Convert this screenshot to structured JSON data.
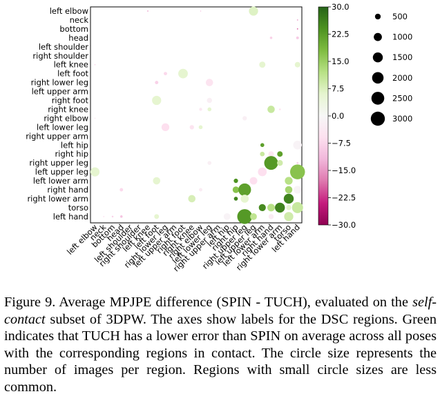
{
  "chart_data": {
    "type": "bubble-matrix",
    "y_categories": [
      "left elbow",
      "neck",
      "bottom",
      "head",
      "left shoulder",
      "right shoulder",
      "left knee",
      "left foot",
      "right lower leg",
      "left upper arm",
      "right foot",
      "right knee",
      "right elbow",
      "left lower leg",
      "right upper arm",
      "left hip",
      "right hip",
      "right upper leg",
      "left upper leg",
      "left lower arm",
      "right hand",
      "right lower arm",
      "torso",
      "left hand"
    ],
    "x_categories": [
      "left elbow",
      "neck",
      "bottom",
      "head",
      "left shoulder",
      "right shoulder",
      "left knee",
      "left foot",
      "right lower leg",
      "left upper arm",
      "right foot",
      "right knee",
      "right elbow",
      "left lower leg",
      "right upper arm",
      "left hip",
      "right hip",
      "right upper leg",
      "left upper leg",
      "left lower arm",
      "right hand",
      "right lower arm",
      "torso",
      "left hand"
    ],
    "points": [
      {
        "x": 6,
        "y": 0,
        "size": 20,
        "value": -14
      },
      {
        "x": 12,
        "y": 0,
        "size": 15,
        "value": -10
      },
      {
        "x": 18,
        "y": 0,
        "size": 1100,
        "value": 7
      },
      {
        "x": 23,
        "y": 1,
        "size": 20,
        "value": -14
      },
      {
        "x": 23,
        "y": 2,
        "size": 20,
        "value": -20
      },
      {
        "x": 20,
        "y": 3,
        "size": 80,
        "value": -8
      },
      {
        "x": 23,
        "y": 3,
        "size": 100,
        "value": -9
      },
      {
        "x": 0,
        "y": 6,
        "size": 10,
        "value": -8
      },
      {
        "x": 19,
        "y": 6,
        "size": 500,
        "value": 6
      },
      {
        "x": 23,
        "y": 6,
        "size": 400,
        "value": 6
      },
      {
        "x": 8,
        "y": 7,
        "size": 150,
        "value": -7
      },
      {
        "x": 10,
        "y": 7,
        "size": 1200,
        "value": 6
      },
      {
        "x": 7,
        "y": 8,
        "size": 150,
        "value": -8
      },
      {
        "x": 13,
        "y": 8,
        "size": 700,
        "value": -5
      },
      {
        "x": 7,
        "y": 10,
        "size": 1100,
        "value": 6
      },
      {
        "x": 13,
        "y": 10,
        "size": 350,
        "value": -2
      },
      {
        "x": 12,
        "y": 11,
        "size": 120,
        "value": -4
      },
      {
        "x": 13,
        "y": 11,
        "size": 200,
        "value": 6
      },
      {
        "x": 20,
        "y": 11,
        "size": 700,
        "value": 10
      },
      {
        "x": 21,
        "y": 11,
        "size": 40,
        "value": -6
      },
      {
        "x": 0,
        "y": 12,
        "size": 20,
        "value": -4
      },
      {
        "x": 17,
        "y": 12,
        "size": 250,
        "value": -2
      },
      {
        "x": 8,
        "y": 13,
        "size": 800,
        "value": -6
      },
      {
        "x": 11,
        "y": 13,
        "size": 250,
        "value": -5
      },
      {
        "x": 12,
        "y": 13,
        "size": 200,
        "value": 6
      },
      {
        "x": 19,
        "y": 15,
        "size": 200,
        "value": 22
      },
      {
        "x": 23,
        "y": 15,
        "size": 1000,
        "value": -1
      },
      {
        "x": 19,
        "y": 16,
        "size": 280,
        "value": 10
      },
      {
        "x": 20,
        "y": 16,
        "size": 400,
        "value": -4
      },
      {
        "x": 21,
        "y": 16,
        "size": 400,
        "value": 22
      },
      {
        "x": 13,
        "y": 17,
        "size": 200,
        "value": -2
      },
      {
        "x": 20,
        "y": 17,
        "size": 2500,
        "value": 23
      },
      {
        "x": 21,
        "y": 17,
        "size": 450,
        "value": 9
      },
      {
        "x": 23,
        "y": 17,
        "size": 50,
        "value": -8
      },
      {
        "x": 0,
        "y": 18,
        "size": 1100,
        "value": 6
      },
      {
        "x": 19,
        "y": 18,
        "size": 1000,
        "value": -6
      },
      {
        "x": 23,
        "y": 18,
        "size": 2900,
        "value": 17
      },
      {
        "x": 7,
        "y": 19,
        "size": 700,
        "value": 6
      },
      {
        "x": 16,
        "y": 19,
        "size": 250,
        "value": 24
      },
      {
        "x": 18,
        "y": 19,
        "size": 750,
        "value": -6
      },
      {
        "x": 22,
        "y": 19,
        "size": 800,
        "value": 12
      },
      {
        "x": 3,
        "y": 20,
        "size": 150,
        "value": -7
      },
      {
        "x": 12,
        "y": 20,
        "size": 150,
        "value": -3
      },
      {
        "x": 16,
        "y": 20,
        "size": 550,
        "value": 17
      },
      {
        "x": 17,
        "y": 20,
        "size": 2100,
        "value": 22
      },
      {
        "x": 22,
        "y": 20,
        "size": 700,
        "value": 14
      },
      {
        "x": 23,
        "y": 20,
        "size": 800,
        "value": -1
      },
      {
        "x": 11,
        "y": 21,
        "size": 700,
        "value": 8
      },
      {
        "x": 16,
        "y": 21,
        "size": 200,
        "value": 26
      },
      {
        "x": 17,
        "y": 21,
        "size": 850,
        "value": 6
      },
      {
        "x": 22,
        "y": 21,
        "size": 1300,
        "value": 26
      },
      {
        "x": 19,
        "y": 22,
        "size": 650,
        "value": 25
      },
      {
        "x": 20,
        "y": 22,
        "size": 750,
        "value": 12
      },
      {
        "x": 21,
        "y": 22,
        "size": 1300,
        "value": 26
      },
      {
        "x": 22,
        "y": 22,
        "size": 350,
        "value": 6
      },
      {
        "x": 23,
        "y": 22,
        "size": 1600,
        "value": 10
      },
      {
        "x": 1,
        "y": 23,
        "size": 20,
        "value": -6
      },
      {
        "x": 2,
        "y": 23,
        "size": 40,
        "value": -8
      },
      {
        "x": 3,
        "y": 23,
        "size": 80,
        "value": -10
      },
      {
        "x": 7,
        "y": 23,
        "size": 300,
        "value": 6
      },
      {
        "x": 15,
        "y": 23,
        "size": 600,
        "value": -1
      },
      {
        "x": 17,
        "y": 23,
        "size": 2900,
        "value": 23
      },
      {
        "x": 18,
        "y": 23,
        "size": 600,
        "value": 11
      },
      {
        "x": 20,
        "y": 23,
        "size": 350,
        "value": -3
      },
      {
        "x": 22,
        "y": 23,
        "size": 1100,
        "value": 9
      }
    ],
    "colorbar": {
      "min": -30,
      "max": 30,
      "ticks": [
        "30.0",
        "22.5",
        "15.0",
        "7.5",
        "0.0",
        "−7.5",
        "−15.0",
        "−22.5",
        "−30.0"
      ]
    },
    "size_legend": [
      500,
      1000,
      1500,
      2000,
      2500,
      3000
    ],
    "colormap": [
      "#8e0152",
      "#c51b7d",
      "#de77ae",
      "#f1b6da",
      "#fde0ef",
      "#f7f7f7",
      "#e6f5d0",
      "#b8e186",
      "#7fbc41",
      "#4d9221",
      "#276419"
    ]
  },
  "caption": {
    "lead": "Figure 9. Average MPJPE difference (SPIN - TUCH), evaluated on the ",
    "italic": "self-contact",
    "tail": " subset of 3DPW. The axes show labels for the DSC regions.  Green indicates that TUCH has a lower error than SPIN on average across all poses with the corresponding regions in contact.  The circle size represents the number of images per region. Regions with small circle sizes are less common."
  }
}
